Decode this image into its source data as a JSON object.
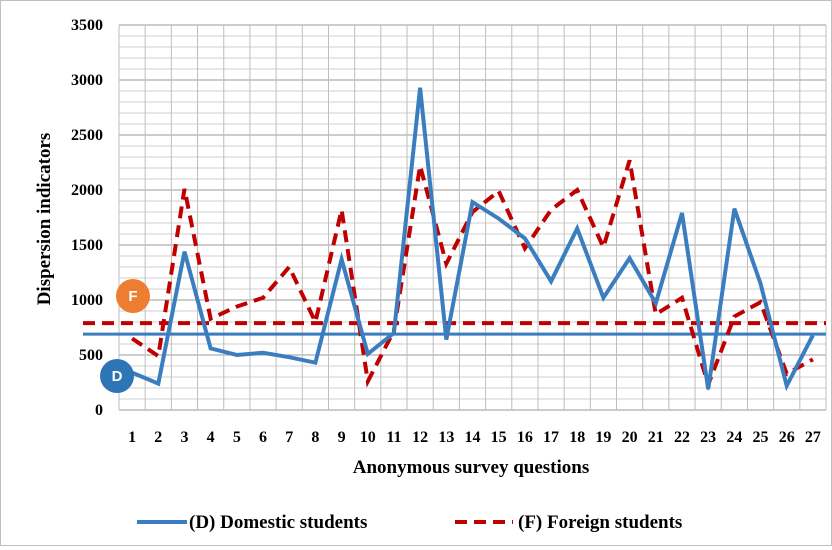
{
  "chart_data": {
    "type": "line",
    "title": "",
    "xlabel": "Anonymous survey questions",
    "ylabel": "Dispersion indicators",
    "ylim": [
      0,
      3500
    ],
    "yticks": [
      0,
      500,
      1000,
      1500,
      2000,
      2500,
      3000,
      3500
    ],
    "x": [
      1,
      2,
      3,
      4,
      5,
      6,
      7,
      8,
      9,
      10,
      11,
      12,
      13,
      14,
      15,
      16,
      17,
      18,
      19,
      20,
      21,
      22,
      23,
      24,
      25,
      26,
      27
    ],
    "grid": true,
    "legend_position": "bottom",
    "series": [
      {
        "name": "(D) Domestic students",
        "style": "solid",
        "color": "#3a7ebf",
        "values": [
          340,
          240,
          1440,
          560,
          500,
          520,
          480,
          430,
          1370,
          510,
          700,
          2930,
          640,
          1890,
          1740,
          1560,
          1170,
          1650,
          1020,
          1380,
          970,
          1790,
          190,
          1830,
          1150,
          220,
          680
        ]
      },
      {
        "name": "(F) Foreign students",
        "style": "dashed",
        "color": "#c00000",
        "values": [
          650,
          490,
          2010,
          830,
          940,
          1020,
          1300,
          800,
          1820,
          260,
          720,
          2220,
          1330,
          1800,
          1990,
          1470,
          1820,
          2000,
          1480,
          2270,
          870,
          1020,
          230,
          850,
          980,
          330,
          460
        ]
      }
    ],
    "reference_lines": [
      {
        "label": "F",
        "value": 790,
        "style": "dashed",
        "color": "#c00000",
        "badge_color": "#ed7d31"
      },
      {
        "label": "D",
        "value": 690,
        "style": "solid",
        "color": "#3a7ebf",
        "badge_color": "#2e75b6"
      }
    ]
  }
}
